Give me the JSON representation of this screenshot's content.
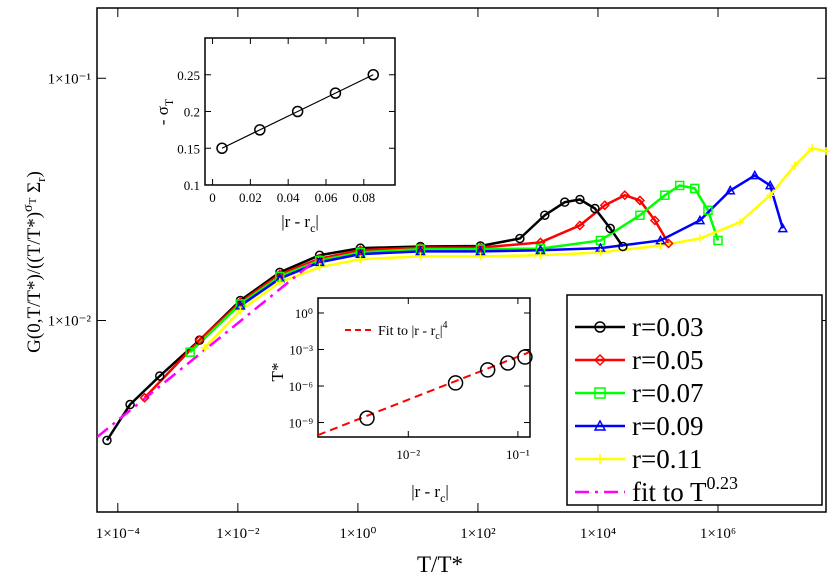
{
  "chart_data": [
    {
      "type": "line",
      "xlabel": "T/T*",
      "ylabel": {
        "main": "G(0,T/T*)/((T/T*)",
        "sup": "σ",
        "supsub": "T",
        "rest": " Σ",
        "sub": "r",
        "end": ")"
      },
      "xlog": true,
      "ylog": true,
      "xlim": [
        4.5e-05,
        63000000.0
      ],
      "ylim": [
        0.00162,
        0.195
      ],
      "xticks": [
        {
          "value": 0.0001,
          "label": "1×10⁻⁴"
        },
        {
          "value": 0.01,
          "label": "1×10⁻²"
        },
        {
          "value": 1,
          "label": "1×10⁰"
        },
        {
          "value": 100,
          "label": "1×10²"
        },
        {
          "value": 10000,
          "label": "1×10⁴"
        },
        {
          "value": 1000000,
          "label": "1×10⁶"
        }
      ],
      "yticks": [
        {
          "value": 0.01,
          "label": "1×10⁻²"
        },
        {
          "value": 0.1,
          "label": "1×10⁻¹"
        }
      ],
      "legend": "lower right",
      "series": [
        {
          "name": "r=0.03",
          "color": "#000000",
          "marker": "circle",
          "x": [
            6.6e-05,
            0.00016,
            0.0005,
            0.0023,
            0.011,
            0.05,
            0.23,
            1.1,
            11,
            110,
            500,
            1300,
            2800,
            5000,
            8900,
            16000,
            26000
          ],
          "values": [
            0.0032,
            0.0045,
            0.0059,
            0.0083,
            0.0121,
            0.0158,
            0.0186,
            0.0199,
            0.0202,
            0.0203,
            0.0218,
            0.0272,
            0.0308,
            0.0316,
            0.029,
            0.024,
            0.0202
          ]
        },
        {
          "name": "r=0.05",
          "color": "#ff0000",
          "marker": "diamond",
          "x": [
            0.00028,
            0.0023,
            0.011,
            0.05,
            0.23,
            1.1,
            11,
            110,
            1100,
            5000,
            13000,
            28000,
            50000,
            89000,
            150000
          ],
          "values": [
            0.0048,
            0.0083,
            0.0119,
            0.0155,
            0.018,
            0.0195,
            0.02,
            0.02,
            0.021,
            0.0247,
            0.0299,
            0.0329,
            0.0313,
            0.0259,
            0.0208
          ]
        },
        {
          "name": "r=0.07",
          "color": "#00ff00",
          "marker": "square",
          "x": [
            0.0016,
            0.011,
            0.05,
            0.23,
            1.1,
            11,
            110,
            1100,
            11000,
            50000,
            130000,
            230000,
            410000,
            680000,
            1000000
          ],
          "values": [
            0.0074,
            0.0117,
            0.0152,
            0.0177,
            0.0191,
            0.0197,
            0.0197,
            0.0198,
            0.0214,
            0.0272,
            0.0329,
            0.0361,
            0.0351,
            0.0285,
            0.0214
          ]
        },
        {
          "name": "r=0.09",
          "color": "#0000ff",
          "marker": "triangle",
          "x": [
            0.011,
            0.05,
            0.23,
            1.1,
            11,
            110,
            1100,
            11000,
            110000,
            500000,
            1600000,
            4100000,
            7400000,
            12000000
          ],
          "values": [
            0.0115,
            0.0149,
            0.0174,
            0.0188,
            0.0193,
            0.0193,
            0.0195,
            0.0199,
            0.0214,
            0.0259,
            0.0344,
            0.0397,
            0.0361,
            0.024
          ]
        },
        {
          "name": "r=0.11",
          "color": "#ffff00",
          "marker": "plus",
          "x": [
            0.0028,
            0.011,
            0.05,
            0.23,
            1.1,
            11,
            110,
            1100,
            11000,
            110000,
            500000,
            2300000,
            7400000,
            19000000,
            37000000,
            63000000
          ],
          "values": [
            0.0077,
            0.011,
            0.0144,
            0.0166,
            0.0179,
            0.0184,
            0.0184,
            0.0186,
            0.0191,
            0.0204,
            0.0218,
            0.0254,
            0.0329,
            0.0436,
            0.0514,
            0.05
          ]
        },
        {
          "name": "fit to T",
          "name_sup": "0.23",
          "color": "#ff00ff",
          "dash": true,
          "x": [
            4.5e-05,
            0.25
          ],
          "values": [
            0.0033,
            0.0186
          ]
        }
      ]
    },
    {
      "type": "line",
      "xlabel": {
        "main": "|r - r",
        "sub": "c",
        "end": "|"
      },
      "ylabel": {
        "main": "- σ",
        "sub": "T"
      },
      "xlim": [
        -0.004,
        0.0965
      ],
      "ylim": [
        0.1,
        0.3
      ],
      "xticks": [
        0,
        0.02,
        0.04,
        0.06,
        0.08
      ],
      "yticks": [
        0.1,
        0.15,
        0.2,
        0.25
      ],
      "series": [
        {
          "color": "#000000",
          "marker": "circle",
          "x": [
            0.005,
            0.025,
            0.045,
            0.065,
            0.085
          ],
          "values": [
            0.15,
            0.175,
            0.2,
            0.225,
            0.25
          ]
        }
      ]
    },
    {
      "type": "scatter",
      "xlabel": {
        "main": "|r - r",
        "sub": "c",
        "end": "|"
      },
      "ylabel": "T*",
      "xlog": true,
      "ylog": true,
      "xlim": [
        0.0015,
        0.129
      ],
      "ylim": [
        6.5e-11,
        17
      ],
      "xticks": [
        {
          "value": 0.01,
          "label": "10⁻²"
        },
        {
          "value": 0.1,
          "label": "10⁻¹"
        }
      ],
      "yticks": [
        {
          "value": 1e-09,
          "label": "10⁻⁹"
        },
        {
          "value": 1e-06,
          "label": "10⁻⁶"
        },
        {
          "value": 0.001,
          "label": "10⁻³"
        },
        {
          "value": 1,
          "label": "10⁰"
        }
      ],
      "series": [
        {
          "color": "#000000",
          "marker": "circle",
          "x": [
            0.0042,
            0.027,
            0.053,
            0.081,
            0.116
          ],
          "values": [
            2.3e-09,
            1.8e-06,
            2.1e-05,
            7.8e-05,
            0.00024
          ]
        },
        {
          "name": {
            "main": "Fit to |r - r",
            "sub": "c",
            "end": "|",
            "sup": "4"
          },
          "color": "#ff0000",
          "dash": true,
          "x": [
            0.0015,
            0.129
          ],
          "values": [
            9.4e-11,
            0.00063
          ]
        }
      ]
    }
  ]
}
